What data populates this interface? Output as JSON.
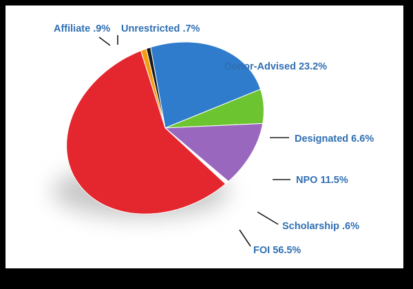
{
  "chart_data": {
    "type": "pie",
    "slices": [
      {
        "key": "donor",
        "label": "Donor-Advised",
        "value": 23.2,
        "value_label": "23.2%",
        "color": "#2f7ccc"
      },
      {
        "key": "designated",
        "label": "Designated",
        "value": 6.6,
        "value_label": "6.6%",
        "color": "#6cc530"
      },
      {
        "key": "npo",
        "label": "NPO",
        "value": 11.5,
        "value_label": "11.5%",
        "color": "#9a67bf"
      },
      {
        "key": "scholarship",
        "label": "Scholarship",
        "value": 0.6,
        "value_label": ".6%",
        "color": "#ffffff"
      },
      {
        "key": "foi",
        "label": "FOI",
        "value": 56.5,
        "value_label": "56.5%",
        "color": "#e4262e"
      },
      {
        "key": "affiliate",
        "label": "Affiliate",
        "value": 0.9,
        "value_label": ".9%",
        "color": "#f39c12"
      },
      {
        "key": "unrestricted",
        "label": "Unrestricted",
        "value": 0.7,
        "value_label": ".7%",
        "color": "#1a1a1a"
      }
    ],
    "label_color": "#2f6fb3",
    "legend": "none"
  }
}
